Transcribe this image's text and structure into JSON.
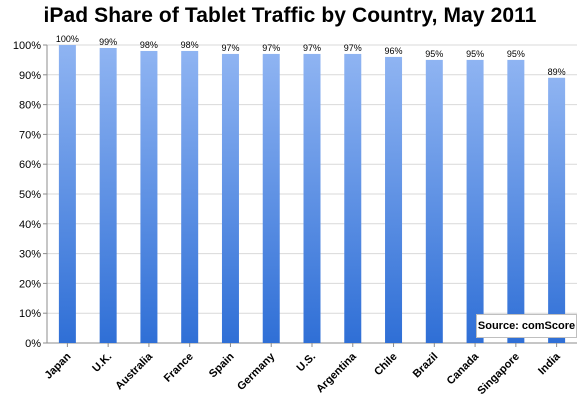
{
  "chart_data": {
    "type": "bar",
    "title": "iPad Share of Tablet Traffic by Country, May 2011",
    "xlabel": "",
    "ylabel": "",
    "ylim": [
      0,
      100
    ],
    "yticks": [
      "0%",
      "10%",
      "20%",
      "30%",
      "40%",
      "50%",
      "60%",
      "70%",
      "80%",
      "90%",
      "100%"
    ],
    "grid": true,
    "categories": [
      "Japan",
      "U.K.",
      "Australia",
      "France",
      "Spain",
      "Germany",
      "U.S.",
      "Argentina",
      "Chile",
      "Brazil",
      "Canada",
      "Singapore",
      "India"
    ],
    "values": [
      100,
      99,
      98,
      98,
      97,
      97,
      97,
      97,
      96,
      95,
      95,
      95,
      89
    ],
    "data_labels": [
      "100%",
      "99%",
      "98%",
      "98%",
      "97%",
      "97%",
      "97%",
      "97%",
      "96%",
      "95%",
      "95%",
      "95%",
      "89%"
    ],
    "annotation": "Source: comScore",
    "colors": {
      "bar_top": "#8fb4f2",
      "bar_bottom": "#2f6fd6",
      "grid": "#d9d9d9",
      "axis": "#8c8c8c"
    }
  }
}
